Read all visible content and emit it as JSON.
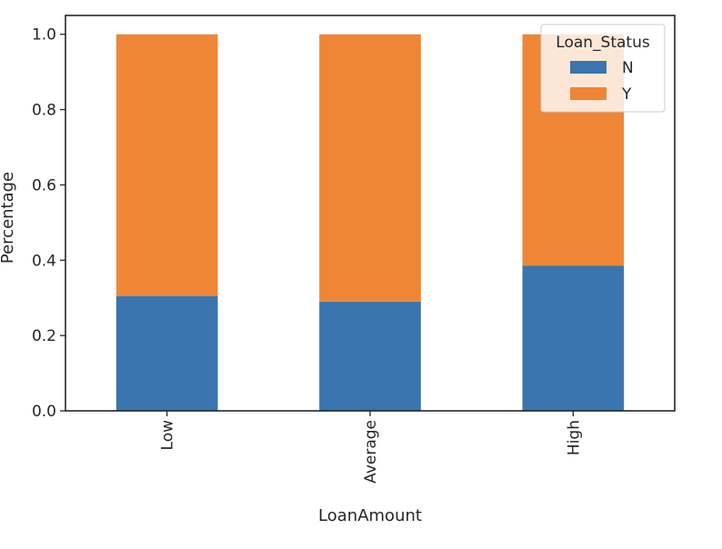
{
  "chart_data": {
    "type": "bar",
    "stacked": true,
    "categories": [
      "Low",
      "Average",
      "High"
    ],
    "series": [
      {
        "name": "N",
        "values": [
          0.305,
          0.29,
          0.385
        ],
        "color": "#3a75af"
      },
      {
        "name": "Y",
        "values": [
          0.695,
          0.71,
          0.615
        ],
        "color": "#ef8636"
      }
    ],
    "title": "",
    "xlabel": "LoanAmount",
    "ylabel": "Percentage",
    "ylim": [
      0,
      1.05
    ],
    "yticks": [
      "0.0",
      "0.2",
      "0.4",
      "0.6",
      "0.8",
      "1.0"
    ],
    "grid": false,
    "legend": {
      "title": "Loan_Status",
      "position": "top-right"
    }
  }
}
